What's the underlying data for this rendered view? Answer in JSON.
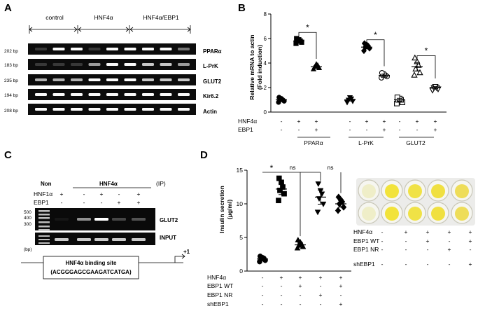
{
  "panels": {
    "A": {
      "letter": "A",
      "groups": [
        "control",
        "HNF4α",
        "HNF4α/EBP1"
      ],
      "rows": [
        {
          "size": "202 bp",
          "gene": "PPARα"
        },
        {
          "size": "183 bp",
          "gene": "L-PrK"
        },
        {
          "size": "235 bp",
          "gene": "GLUT2"
        },
        {
          "size": "194 bp",
          "gene": "Kir6.2"
        },
        {
          "size": "208 bp",
          "gene": "Actin"
        }
      ]
    },
    "B": {
      "letter": "B",
      "ylabel_line1": "Relative mRNA to actin",
      "ylabel_line2": "(Fold induction)",
      "row_labels": [
        "HNF4α",
        "EBP1"
      ],
      "signs": {
        "HNF4a": [
          "-",
          "+",
          "+",
          "-",
          "+",
          "+",
          "-",
          "+",
          "+"
        ],
        "EBP1": [
          "-",
          "-",
          "+",
          "-",
          "-",
          "+",
          "-",
          "-",
          "+"
        ]
      },
      "gene_groups": [
        "PPARα",
        "L-PrK",
        "GLUT2"
      ],
      "sig": "*"
    },
    "C": {
      "letter": "C",
      "non_label": "Non",
      "hnf_label": "HNF4α",
      "ip_label": "(IP)",
      "row_labels": [
        "HNF1α",
        "EBP1"
      ],
      "signs": {
        "HNF1a": [
          "+",
          "-",
          "+",
          "-",
          "+"
        ],
        "EBP1": [
          "-",
          "-",
          "-",
          "+",
          "+"
        ]
      },
      "ladder": [
        "500",
        "400",
        "300",
        "(bp)"
      ],
      "gel_labels": [
        "GLUT2",
        "INPUT"
      ],
      "binding_title": "HNF4α binding site",
      "binding_seq": "(ACGGGAGCGAAGATCATGA)",
      "tss": "+1"
    },
    "D": {
      "letter": "D",
      "ylabel_line1": "Insulin secretion",
      "ylabel_line2": "(μg/ml)",
      "row_labels": [
        "HNF4α",
        "EBP1 WT",
        "EBP1 NR",
        "shEBP1"
      ],
      "signs": [
        [
          "-",
          "+",
          "+",
          "+",
          "+"
        ],
        [
          "-",
          "-",
          "+",
          "-",
          "+"
        ],
        [
          "-",
          "-",
          "-",
          "+",
          "-"
        ],
        [
          "-",
          "-",
          "-",
          "-",
          "+"
        ]
      ],
      "sig": [
        "*",
        "ns",
        "ns"
      ],
      "photo_signs": [
        [
          "-",
          "+",
          "+",
          "+",
          "+"
        ],
        [
          "-",
          "-",
          "+",
          "-",
          "+"
        ],
        [
          "-",
          "-",
          "-",
          "+",
          "-"
        ],
        [
          "-",
          "-",
          "-",
          "-",
          "+"
        ]
      ]
    }
  },
  "chart_data": [
    {
      "type": "scatter",
      "panel": "B",
      "ylabel": "Relative mRNA to actin (Fold induction)",
      "ylim": [
        0,
        8
      ],
      "yticks": [
        0,
        2,
        4,
        6,
        8
      ],
      "groups": [
        {
          "gene": "PPARα",
          "HNF4a": "-",
          "EBP1": "-",
          "mean": 1.0,
          "marker": "circle",
          "points": [
            0.8,
            0.9,
            1.0,
            1.0,
            1.1,
            1.2
          ]
        },
        {
          "gene": "PPARα",
          "HNF4a": "+",
          "EBP1": "-",
          "mean": 5.8,
          "marker": "square",
          "points": [
            5.6,
            5.7,
            5.8,
            5.8,
            5.9,
            6.0
          ]
        },
        {
          "gene": "PPARα",
          "HNF4a": "+",
          "EBP1": "+",
          "mean": 3.7,
          "marker": "triangle-up",
          "points": [
            3.5,
            3.6,
            3.7,
            3.8,
            3.9
          ]
        },
        {
          "gene": "L-PrK",
          "HNF4a": "-",
          "EBP1": "-",
          "mean": 1.0,
          "marker": "triangle-down",
          "points": [
            0.8,
            0.9,
            1.0,
            1.1,
            1.2
          ]
        },
        {
          "gene": "L-PrK",
          "HNF4a": "+",
          "EBP1": "-",
          "mean": 5.3,
          "marker": "diamond",
          "points": [
            5.0,
            5.2,
            5.3,
            5.4,
            5.5,
            5.6
          ]
        },
        {
          "gene": "L-PrK",
          "HNF4a": "+",
          "EBP1": "+",
          "mean": 3.0,
          "marker": "circle-open",
          "points": [
            2.8,
            2.9,
            3.0,
            3.0,
            3.1,
            3.2
          ]
        },
        {
          "gene": "GLUT2",
          "HNF4a": "-",
          "EBP1": "-",
          "mean": 1.0,
          "marker": "square-open",
          "points": [
            0.7,
            0.8,
            1.0,
            1.0,
            1.1,
            1.2
          ]
        },
        {
          "gene": "GLUT2",
          "HNF4a": "+",
          "EBP1": "-",
          "mean": 3.7,
          "marker": "triangle-open",
          "points": [
            3.0,
            3.2,
            3.5,
            3.8,
            4.1,
            4.4
          ]
        },
        {
          "gene": "GLUT2",
          "HNF4a": "+",
          "EBP1": "+",
          "mean": 2.0,
          "marker": "triangle-down-open",
          "points": [
            1.8,
            1.9,
            2.0,
            2.0,
            2.1
          ]
        }
      ]
    },
    {
      "type": "scatter",
      "panel": "D",
      "ylabel": "Insulin secretion (μg/ml)",
      "ylim": [
        0,
        15
      ],
      "yticks": [
        0,
        5,
        10,
        15
      ],
      "groups": [
        {
          "mean": 1.8,
          "marker": "circle",
          "points": [
            1.4,
            1.6,
            1.8,
            1.9,
            2.0,
            2.2
          ]
        },
        {
          "mean": 12.2,
          "marker": "square",
          "points": [
            10.5,
            11.5,
            12.0,
            12.5,
            13.2,
            13.8
          ]
        },
        {
          "mean": 3.9,
          "marker": "triangle-up",
          "points": [
            3.4,
            3.6,
            3.8,
            4.0,
            4.3,
            4.6
          ]
        },
        {
          "mean": 11.0,
          "marker": "triangle-down",
          "points": [
            8.8,
            10.0,
            10.8,
            11.5,
            12.0,
            13.0
          ]
        },
        {
          "mean": 10.0,
          "marker": "diamond",
          "points": [
            9.0,
            9.5,
            10.0,
            10.3,
            10.6,
            11.0
          ]
        }
      ]
    }
  ]
}
